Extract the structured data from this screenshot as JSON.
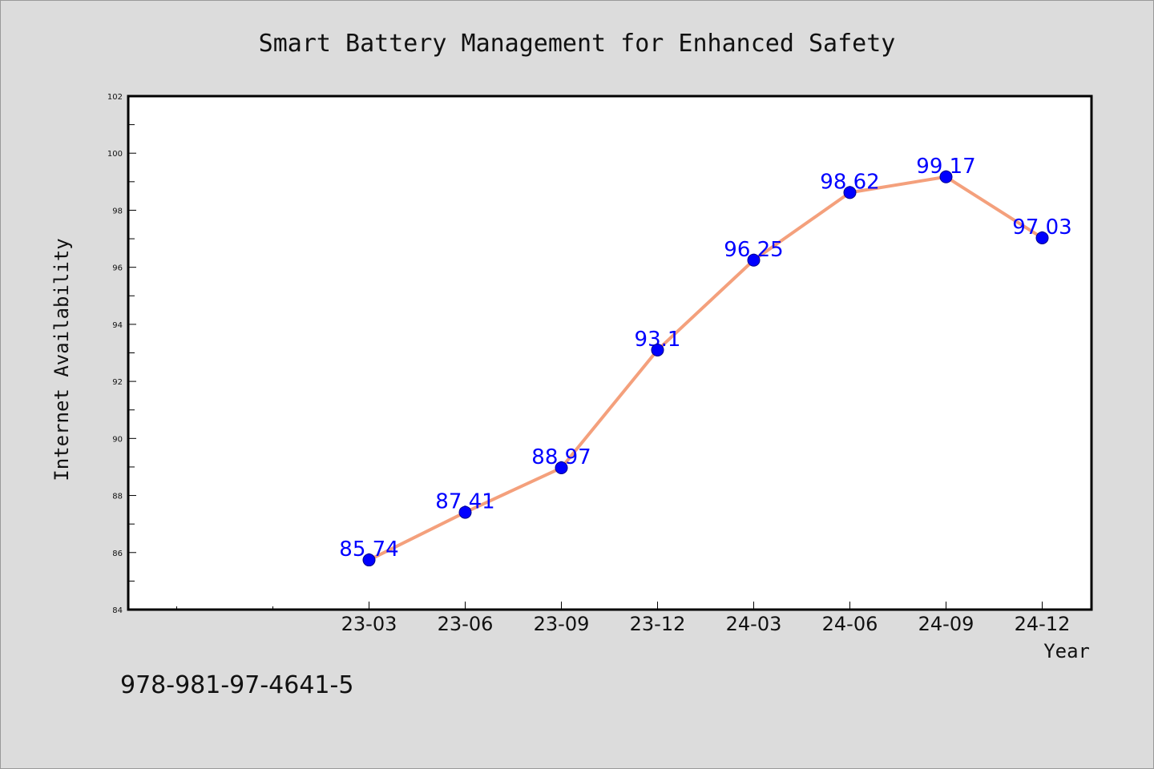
{
  "chart_data": {
    "type": "line",
    "title": "Smart Battery Management for Enhanced Safety",
    "xlabel": "Year",
    "ylabel": "Internet Availability",
    "categories": [
      "23-03",
      "23-06",
      "23-09",
      "23-12",
      "24-03",
      "24-06",
      "24-09",
      "24-12"
    ],
    "series": [
      {
        "values": [
          85.74,
          87.41,
          88.97,
          93.1,
          96.25,
          98.62,
          99.17,
          97.03
        ],
        "data_labels": [
          "85.74",
          "87.41",
          "88.97",
          "93.1",
          "96.25",
          "98.62",
          "99.17",
          "97.03"
        ],
        "line_color": "#f4a07c",
        "marker_color": "#0000ff"
      }
    ],
    "ylim": [
      84,
      102
    ],
    "yticks": [
      84,
      86,
      88,
      90,
      92,
      94,
      96,
      98,
      100,
      102
    ],
    "grid": false,
    "legend": "none"
  },
  "annotation": "978-981-97-4641-5",
  "colors": {
    "background": "#dcdcdc",
    "plot_background": "#ffffff",
    "line": "#f4a07c",
    "marker": "#0000ff",
    "label": "#0000ff"
  }
}
